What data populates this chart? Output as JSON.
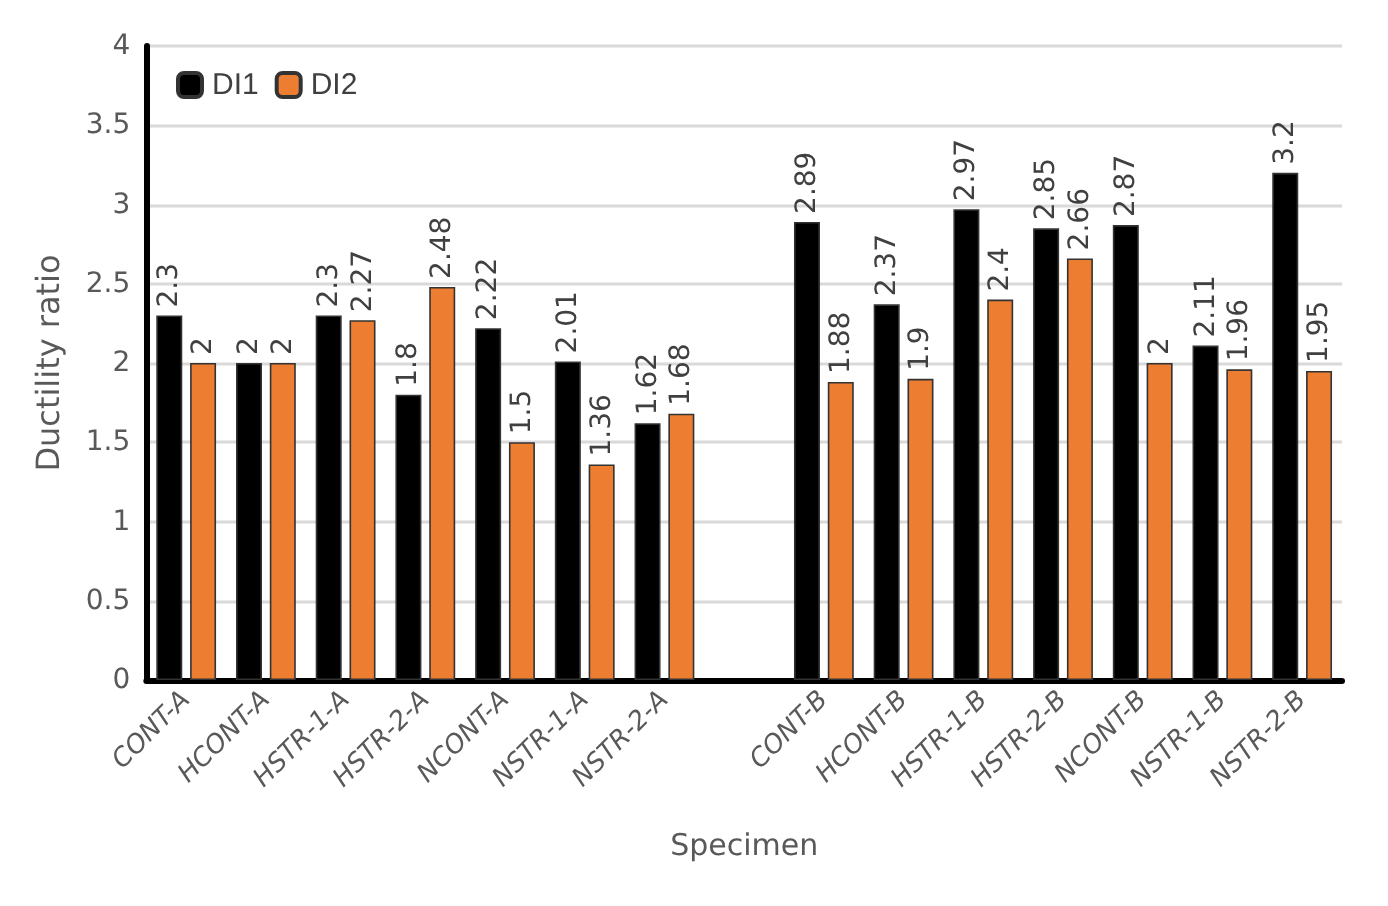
{
  "chart_data": {
    "type": "bar",
    "xlabel": "Specimen",
    "ylabel": "Ductility ratio",
    "categories": [
      "CONT-A",
      "HCONT-A",
      "HSTR-1-A",
      "HSTR-2-A",
      "NCONT-A",
      "NSTR-1-A",
      "NSTR-2-A",
      null,
      "CONT-B",
      "HCONT-B",
      "HSTR-1-B",
      "HSTR-2-B",
      "NCONT-B",
      "NSTR-1-B",
      "NSTR-2-B"
    ],
    "series": [
      {
        "name": "DI1",
        "color": "#000000",
        "values": [
          2.3,
          2,
          2.3,
          1.8,
          2.22,
          2.01,
          1.62,
          null,
          2.89,
          2.37,
          2.97,
          2.85,
          2.87,
          2.11,
          3.2
        ]
      },
      {
        "name": "DI2",
        "color": "#ed7d31",
        "values": [
          2,
          2,
          2.27,
          2.48,
          1.5,
          1.36,
          1.68,
          null,
          1.88,
          1.9,
          2.4,
          2.66,
          2,
          1.96,
          1.95
        ]
      }
    ],
    "ylim": [
      0,
      4
    ],
    "yticks": [
      0,
      0.5,
      1,
      1.5,
      2,
      2.5,
      3,
      3.5,
      4
    ],
    "grid": "y",
    "legend": "top left",
    "data_labels": true
  }
}
